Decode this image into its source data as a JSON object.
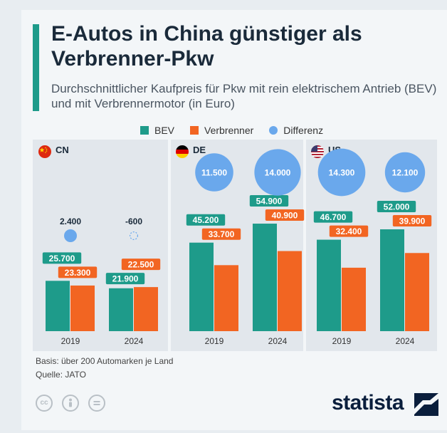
{
  "title": "E-Autos in China günstiger als Verbrenner-Pkw",
  "subtitle": "Durchschnittlicher Kaufpreis für Pkw mit rein elektrischem Antrieb (BEV) und mit Verbrennermotor (in Euro)",
  "legend": {
    "bev": "BEV",
    "verbrenner": "Verbrenner",
    "differenz": "Differenz"
  },
  "colors": {
    "bev": "#1e9b8a",
    "verbrenner": "#f26522",
    "differenz": "#6aa8ec",
    "label_text": "#ffffff",
    "diff_text": "#1a2a3a"
  },
  "chart_data": {
    "type": "bar",
    "ylim": [
      0,
      60000
    ],
    "panels": [
      {
        "country": "CN",
        "flag": "china-flag-icon",
        "categories": [
          "2019",
          "2024"
        ],
        "series": [
          {
            "name": "BEV",
            "values": [
              25700,
              21900
            ]
          },
          {
            "name": "Verbrenner",
            "values": [
              23300,
              22500
            ]
          }
        ],
        "difference": [
          2400,
          -600
        ],
        "value_labels": {
          "BEV": [
            "25.700",
            "21.900"
          ],
          "Verbrenner": [
            "23.300",
            "22.500"
          ],
          "Differenz": [
            "2.400",
            "-600"
          ]
        }
      },
      {
        "country": "DE",
        "flag": "germany-flag-icon",
        "categories": [
          "2019",
          "2024"
        ],
        "series": [
          {
            "name": "BEV",
            "values": [
              45200,
              54900
            ]
          },
          {
            "name": "Verbrenner",
            "values": [
              33700,
              40900
            ]
          }
        ],
        "difference": [
          11500,
          14000
        ],
        "value_labels": {
          "BEV": [
            "45.200",
            "54.900"
          ],
          "Verbrenner": [
            "33.700",
            "40.900"
          ],
          "Differenz": [
            "11.500",
            "14.000"
          ]
        }
      },
      {
        "country": "US",
        "flag": "usa-flag-icon",
        "categories": [
          "2019",
          "2024"
        ],
        "series": [
          {
            "name": "BEV",
            "values": [
              46700,
              52000
            ]
          },
          {
            "name": "Verbrenner",
            "values": [
              32400,
              39900
            ]
          }
        ],
        "difference": [
          14300,
          12100
        ],
        "value_labels": {
          "BEV": [
            "46.700",
            "52.000"
          ],
          "Verbrenner": [
            "32.400",
            "39.900"
          ],
          "Differenz": [
            "14.300",
            "12.100"
          ]
        }
      }
    ]
  },
  "footer": {
    "basis": "Basis: über 200 Automarken je Land",
    "quelle": "Quelle: JATO",
    "logo": "statista",
    "license_icons": [
      "cc-icon",
      "by-person-icon",
      "nd-equals-icon"
    ]
  }
}
